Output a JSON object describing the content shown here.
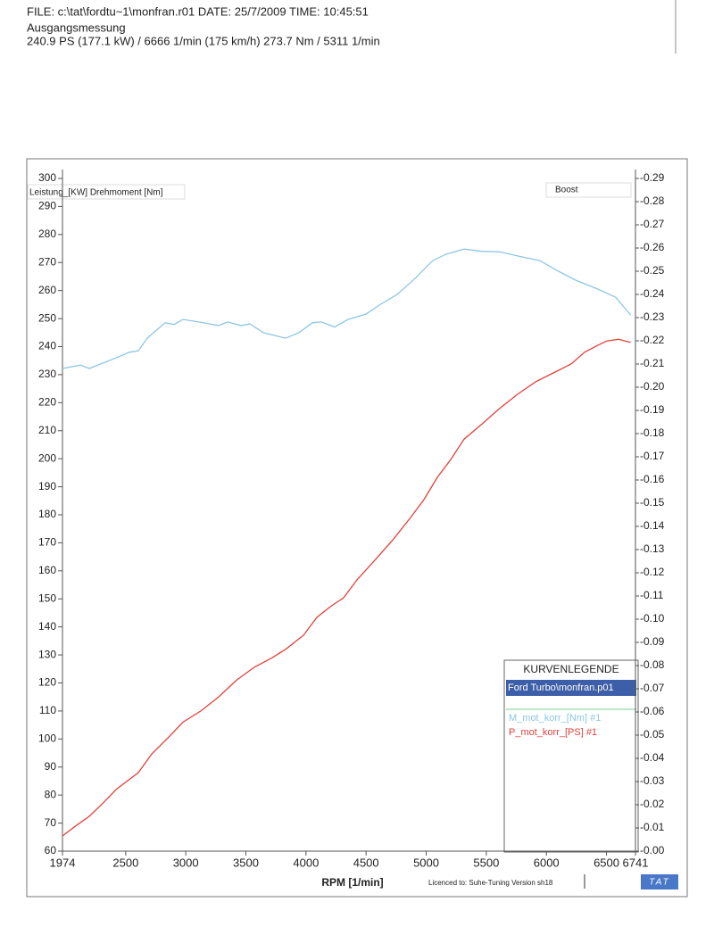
{
  "header": {
    "file_line": "FILE: c:\\tat\\fordtu~1\\monfran.r01  DATE: 25/7/2009  TIME: 10:45:51",
    "measurement": "Ausgangsmessung",
    "summary": "240.9 PS  (177.1 kW) / 6666 1/min (175 km/h)    273.7 Nm / 5311 1/min"
  },
  "chart_data": {
    "type": "line",
    "y_label": "Leistung_[KW] Drehmoment [Nm]",
    "y2_label": "Boost",
    "x_label": "RPM  [1/min]",
    "license": "Licenced to: Suhe-Tuning  Version sh18",
    "brand": "TAT",
    "legend_title": "KURVENLEGENDE",
    "legend_file": "Ford Turbo\\monfran.p01",
    "xlim": [
      1974,
      6741
    ],
    "xticks": [
      1974,
      2500,
      3000,
      3500,
      4000,
      4500,
      5000,
      5500,
      6000,
      6500,
      6741
    ],
    "ylim": [
      60,
      300
    ],
    "yticks": [
      60,
      70,
      80,
      90,
      100,
      110,
      120,
      130,
      140,
      150,
      160,
      170,
      180,
      190,
      200,
      210,
      220,
      230,
      240,
      250,
      260,
      270,
      280,
      290,
      300
    ],
    "y2lim": [
      0,
      -0.29
    ],
    "y2ticks": [
      {
        "value": 0,
        "label": "-0.00"
      },
      -0.01,
      -0.02,
      -0.03,
      -0.04,
      -0.05,
      -0.06,
      -0.07,
      -0.08,
      -0.09,
      {
        "value": -0.1,
        "label": "-0.10"
      },
      -0.11,
      -0.12,
      -0.13,
      -0.14,
      -0.15,
      -0.16,
      -0.17,
      -0.18,
      -0.19,
      {
        "value": -0.2,
        "label": "-0.20"
      },
      -0.21,
      -0.22,
      -0.23,
      -0.24,
      -0.25,
      -0.26,
      -0.27,
      -0.28,
      -0.29
    ],
    "series": [
      {
        "name": "M_mot_korr_[Nm] #1",
        "color": "#8cc6e6",
        "x": [
          1974,
          2123,
          2197,
          2420,
          2531,
          2605,
          2679,
          2828,
          2902,
          2976,
          3162,
          3273,
          3348,
          3459,
          3533,
          3645,
          3830,
          3942,
          4053,
          4127,
          4239,
          4350,
          4499,
          4610,
          4758,
          4907,
          5055,
          5167,
          5315,
          5464,
          5612,
          5798,
          5946,
          6095,
          6243,
          6429,
          6577,
          6700
        ],
        "values": [
          232.2,
          233.4,
          232.2,
          236,
          238,
          238.5,
          243,
          248.5,
          247.9,
          249.7,
          248.4,
          247.5,
          248.8,
          247.5,
          248.1,
          245,
          243,
          245,
          248.5,
          248.8,
          247,
          249.7,
          251.6,
          254.8,
          258.6,
          264.3,
          270.7,
          273,
          274.8,
          274,
          273.8,
          272,
          270.7,
          267,
          263.7,
          260.5,
          257.6,
          251.3
        ]
      },
      {
        "name": "P_mot_korr_[PS] #1",
        "color": "#e2403a",
        "x": [
          1974,
          2085,
          2197,
          2308,
          2420,
          2605,
          2717,
          2865,
          2976,
          3125,
          3273,
          3422,
          3570,
          3719,
          3830,
          3979,
          4090,
          4202,
          4313,
          4424,
          4573,
          4721,
          4870,
          4981,
          5093,
          5204,
          5315,
          5464,
          5612,
          5761,
          5909,
          6058,
          6206,
          6318,
          6429,
          6503,
          6600,
          6700
        ],
        "values": [
          65.4,
          69,
          72.4,
          77,
          82,
          88,
          94.7,
          101,
          106,
          110,
          115,
          121,
          125.6,
          129,
          132,
          137,
          143.4,
          147.2,
          150.4,
          156.8,
          163.8,
          171,
          179,
          185.4,
          193.4,
          199.7,
          207,
          212.4,
          218,
          223,
          227.4,
          230.6,
          233.8,
          238,
          240.5,
          242,
          242.6,
          241.5
        ]
      }
    ]
  }
}
